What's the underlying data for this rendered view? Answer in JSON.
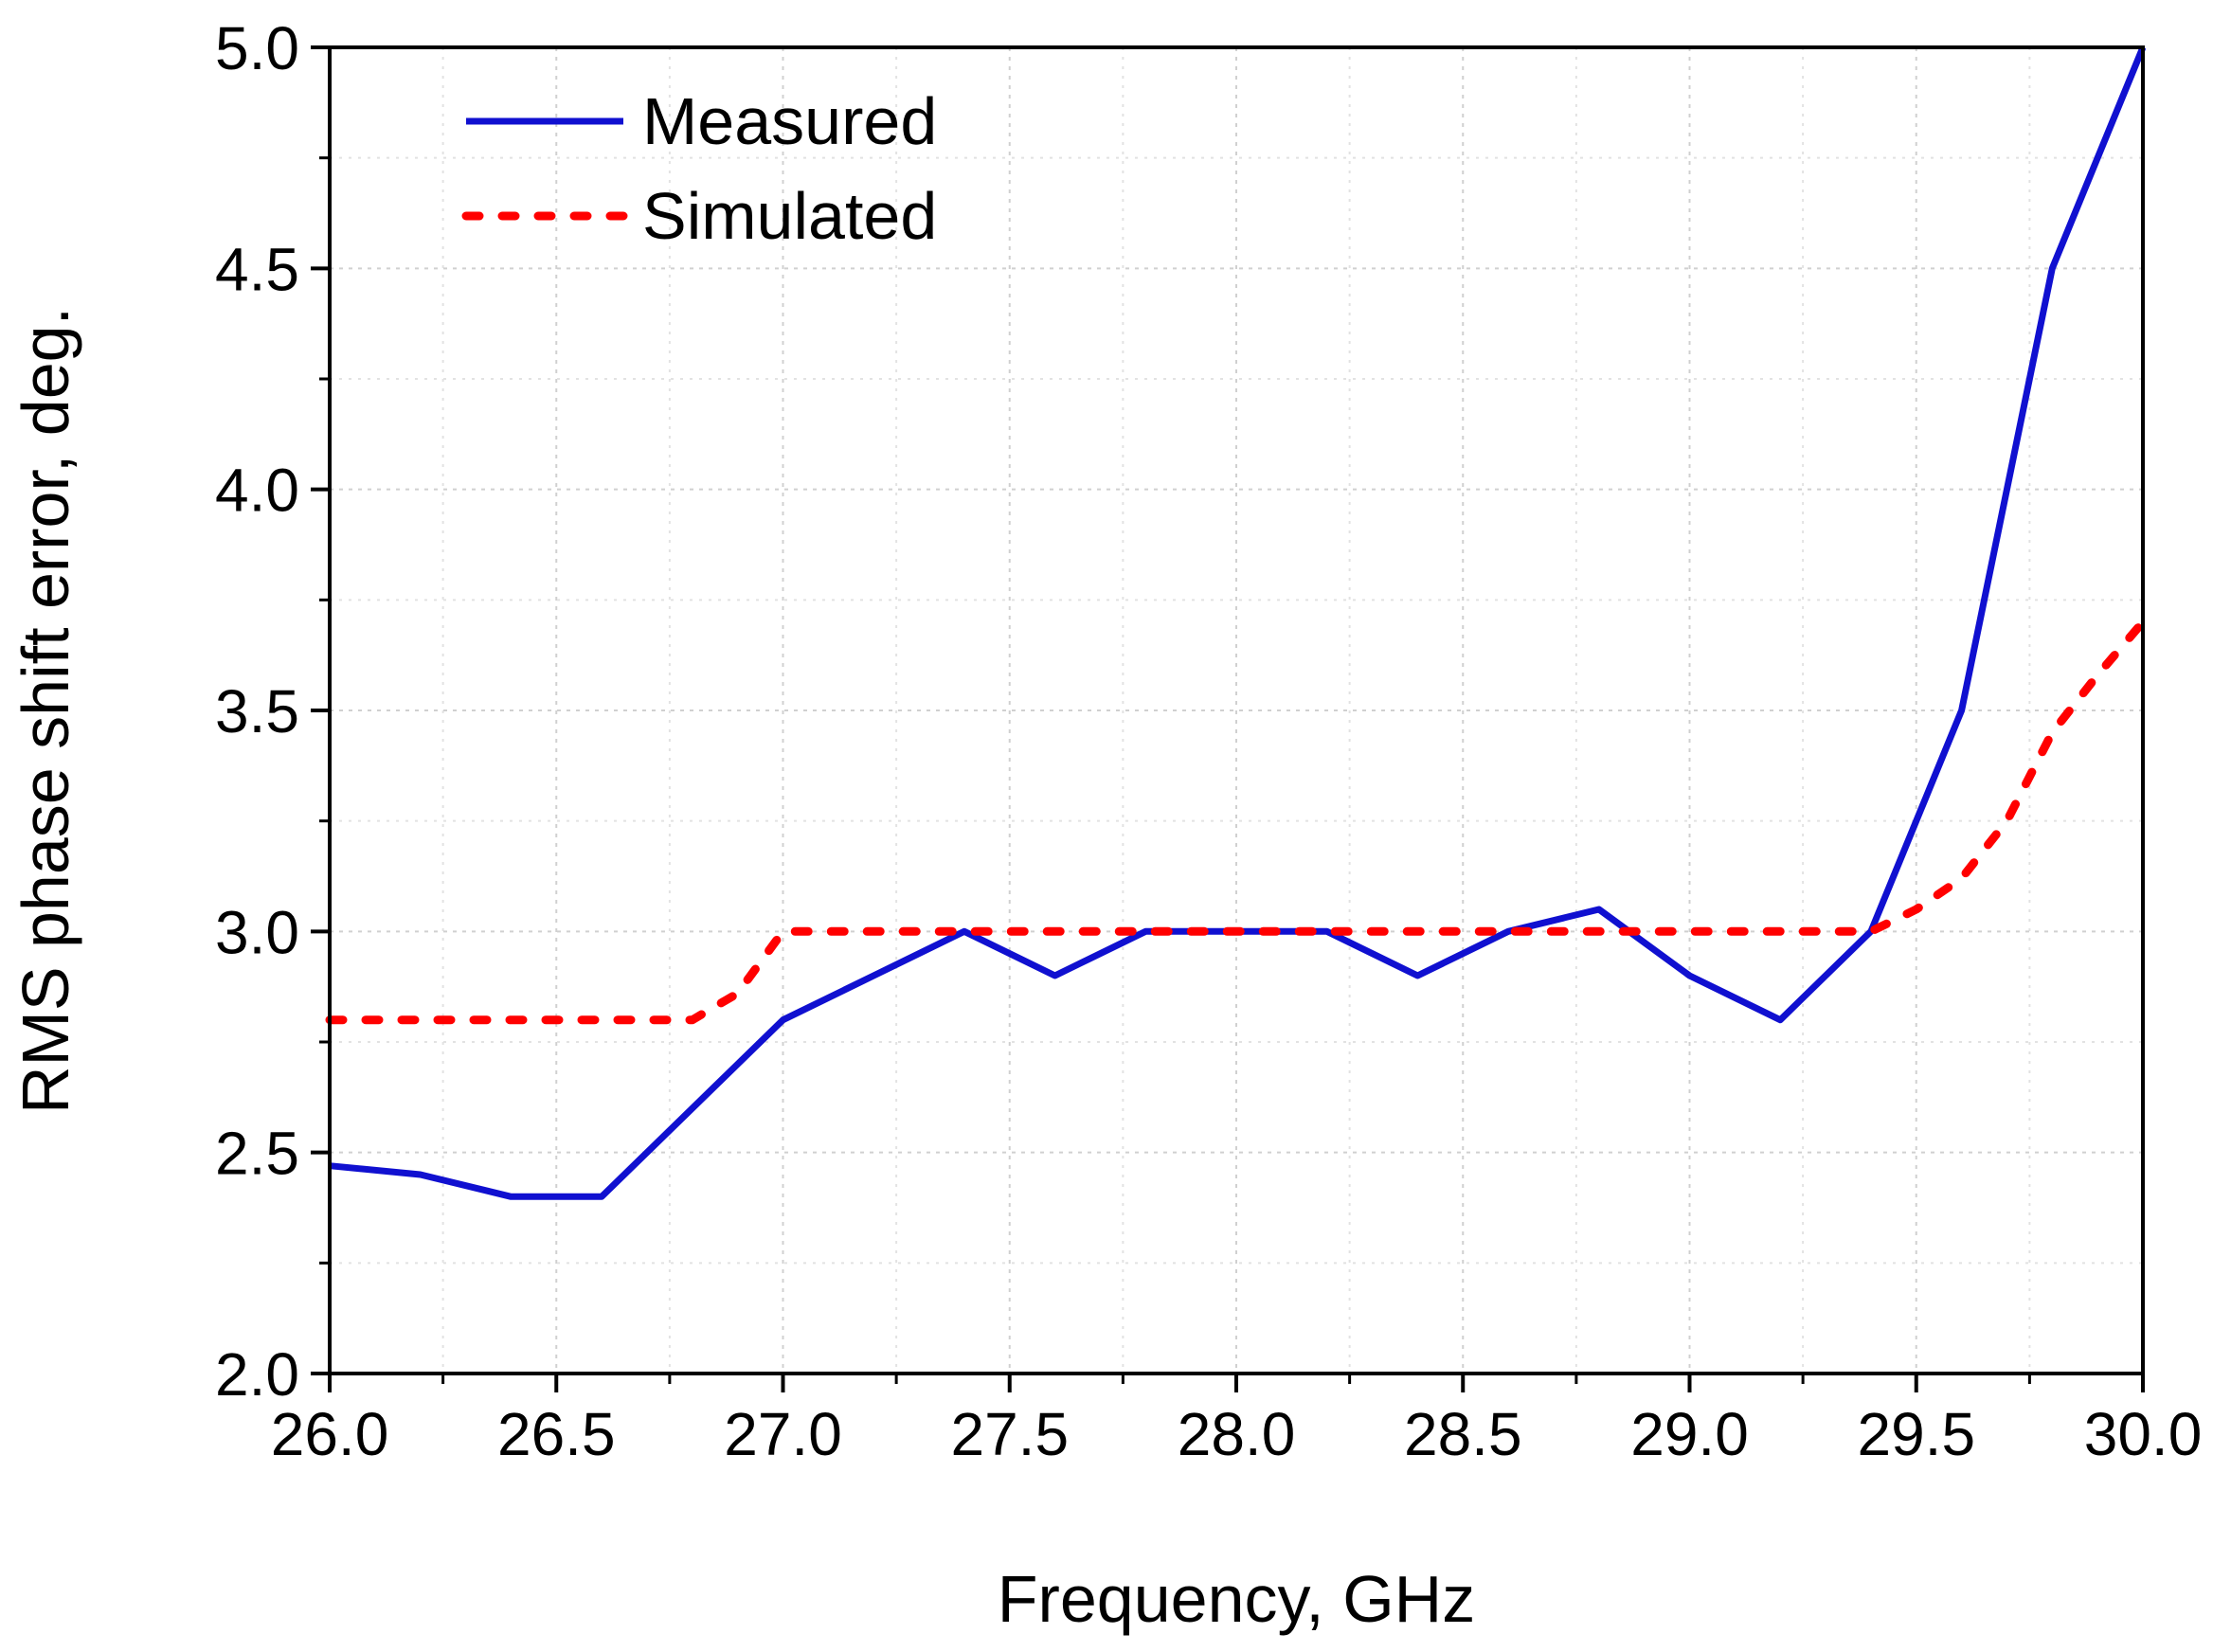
{
  "chart_data": {
    "type": "line",
    "title": "",
    "xlabel": "Frequency, GHz",
    "ylabel": "RMS phase shift error, deg.",
    "xlim": [
      26.0,
      30.0
    ],
    "ylim": [
      2.0,
      5.0
    ],
    "x_ticks": [
      "26.0",
      "26.5",
      "27.0",
      "27.5",
      "28.0",
      "28.5",
      "29.0",
      "29.5",
      "30.0"
    ],
    "y_ticks": [
      "2.0",
      "2.5",
      "3.0",
      "3.5",
      "4.0",
      "4.5",
      "5.0"
    ],
    "grid": true,
    "legend_position": "top-left",
    "series": [
      {
        "name": "Measured",
        "style": "solid",
        "color": "#1010d0",
        "x": [
          26.0,
          26.2,
          26.4,
          26.6,
          26.8,
          27.0,
          27.2,
          27.4,
          27.6,
          27.8,
          28.0,
          28.2,
          28.4,
          28.6,
          28.8,
          29.0,
          29.2,
          29.4,
          29.6,
          29.8,
          30.0
        ],
        "y": [
          2.47,
          2.45,
          2.4,
          2.4,
          2.6,
          2.8,
          2.9,
          3.0,
          2.9,
          3.0,
          3.0,
          3.0,
          2.9,
          3.0,
          3.05,
          2.9,
          2.8,
          3.0,
          3.5,
          4.5,
          5.0
        ]
      },
      {
        "name": "Simulated",
        "style": "dotted",
        "color": "#ff0000",
        "x": [
          26.0,
          26.2,
          26.4,
          26.6,
          26.8,
          26.9,
          27.0,
          27.2,
          27.4,
          27.6,
          27.8,
          28.0,
          28.2,
          28.4,
          28.6,
          28.8,
          29.0,
          29.2,
          29.4,
          29.5,
          29.6,
          29.7,
          29.8,
          29.9,
          30.0
        ],
        "y": [
          2.8,
          2.8,
          2.8,
          2.8,
          2.8,
          2.86,
          3.0,
          3.0,
          3.0,
          3.0,
          3.0,
          3.0,
          3.0,
          3.0,
          3.0,
          3.0,
          3.0,
          3.0,
          3.0,
          3.05,
          3.12,
          3.25,
          3.45,
          3.58,
          3.7
        ]
      }
    ]
  }
}
